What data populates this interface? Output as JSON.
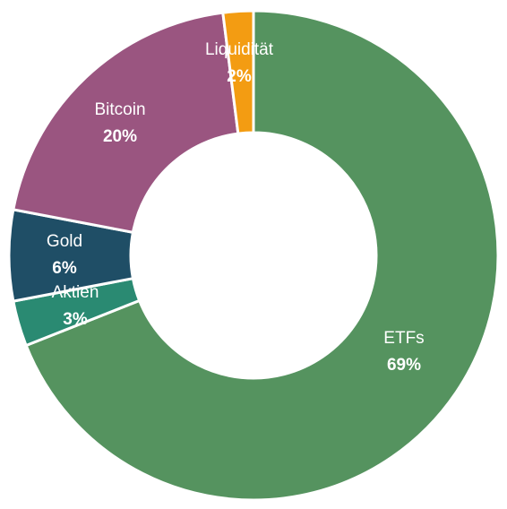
{
  "chart_data": {
    "type": "pie",
    "variant": "donut",
    "title": "",
    "legend": "none",
    "slices": [
      {
        "label": "ETFs",
        "value": 69,
        "value_label": "69%",
        "color": "#55935f"
      },
      {
        "label": "Aktien",
        "value": 3,
        "value_label": "3%",
        "color": "#2a8a72"
      },
      {
        "label": "Gold",
        "value": 6,
        "value_label": "6%",
        "color": "#1f4e66"
      },
      {
        "label": "Bitcoin",
        "value": 20,
        "value_label": "20%",
        "color": "#9a5580"
      },
      {
        "label": "Liquidität",
        "value": 2,
        "value_label": "2%",
        "color": "#f39c12"
      }
    ]
  }
}
